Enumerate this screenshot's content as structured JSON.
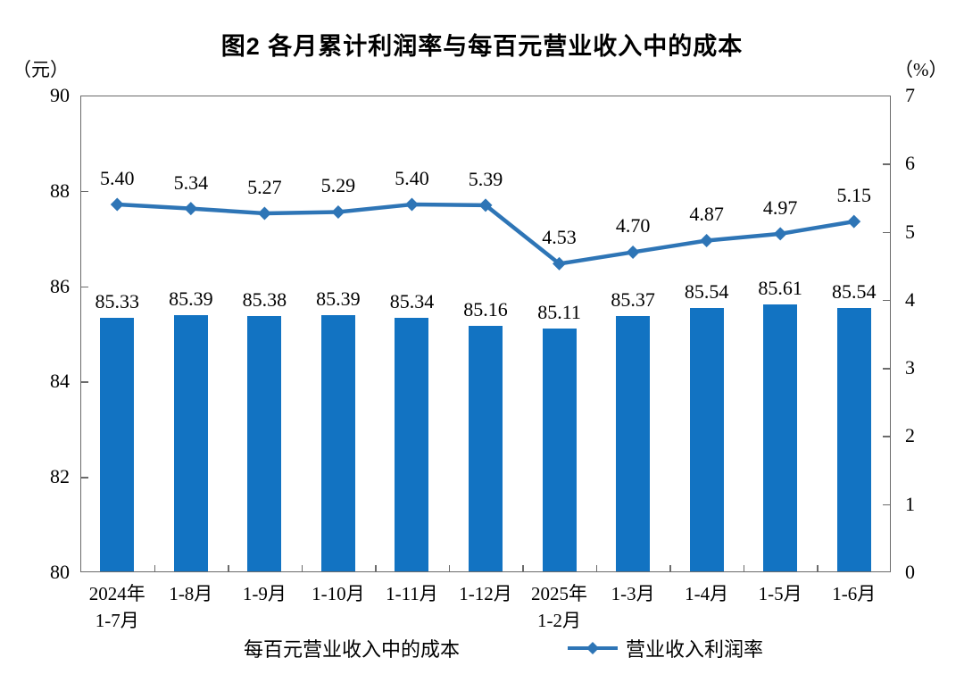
{
  "title": "图2 各月累计利润率与每百元营业收入中的成本",
  "axes": {
    "left_unit": "（元）",
    "right_unit": "（%）"
  },
  "legend": {
    "bar_label": "每百元营业收入中的成本",
    "line_label": "营业收入利润率"
  },
  "colors": {
    "bar": "#1273C2",
    "line": "#2E75B6",
    "axis": "#6b6b6b"
  },
  "chart_data": {
    "type": "combo-bar-line",
    "title": "图2 各月累计利润率与每百元营业收入中的成本",
    "categories": [
      "2024年\n1-7月",
      "1-8月",
      "1-9月",
      "1-10月",
      "1-11月",
      "1-12月",
      "2025年\n1-2月",
      "1-3月",
      "1-4月",
      "1-5月",
      "1-6月"
    ],
    "series": [
      {
        "name": "每百元营业收入中的成本",
        "type": "bar",
        "axis": "left",
        "color": "#1273C2",
        "values": [
          85.33,
          85.39,
          85.38,
          85.39,
          85.34,
          85.16,
          85.11,
          85.37,
          85.54,
          85.61,
          85.54
        ],
        "labels": [
          "85.33",
          "85.39",
          "85.38",
          "85.39",
          "85.34",
          "85.16",
          "85.11",
          "85.37",
          "85.54",
          "85.61",
          "85.54"
        ]
      },
      {
        "name": "营业收入利润率",
        "type": "line",
        "axis": "right",
        "color": "#2E75B6",
        "marker": "diamond",
        "values": [
          5.4,
          5.34,
          5.27,
          5.29,
          5.4,
          5.39,
          4.53,
          4.7,
          4.87,
          4.97,
          5.15
        ],
        "labels": [
          "5.40",
          "5.34",
          "5.27",
          "5.29",
          "5.40",
          "5.39",
          "4.53",
          "4.70",
          "4.87",
          "4.97",
          "5.15"
        ]
      }
    ],
    "left_axis": {
      "unit": "（元）",
      "min": 80,
      "max": 90,
      "ticks": [
        90,
        88,
        86,
        84,
        82,
        80
      ]
    },
    "right_axis": {
      "unit": "（%）",
      "min": 0,
      "max": 7,
      "ticks": [
        7,
        6,
        5,
        4,
        3,
        2,
        1,
        0
      ]
    },
    "grid": false,
    "legend_position": "bottom"
  }
}
